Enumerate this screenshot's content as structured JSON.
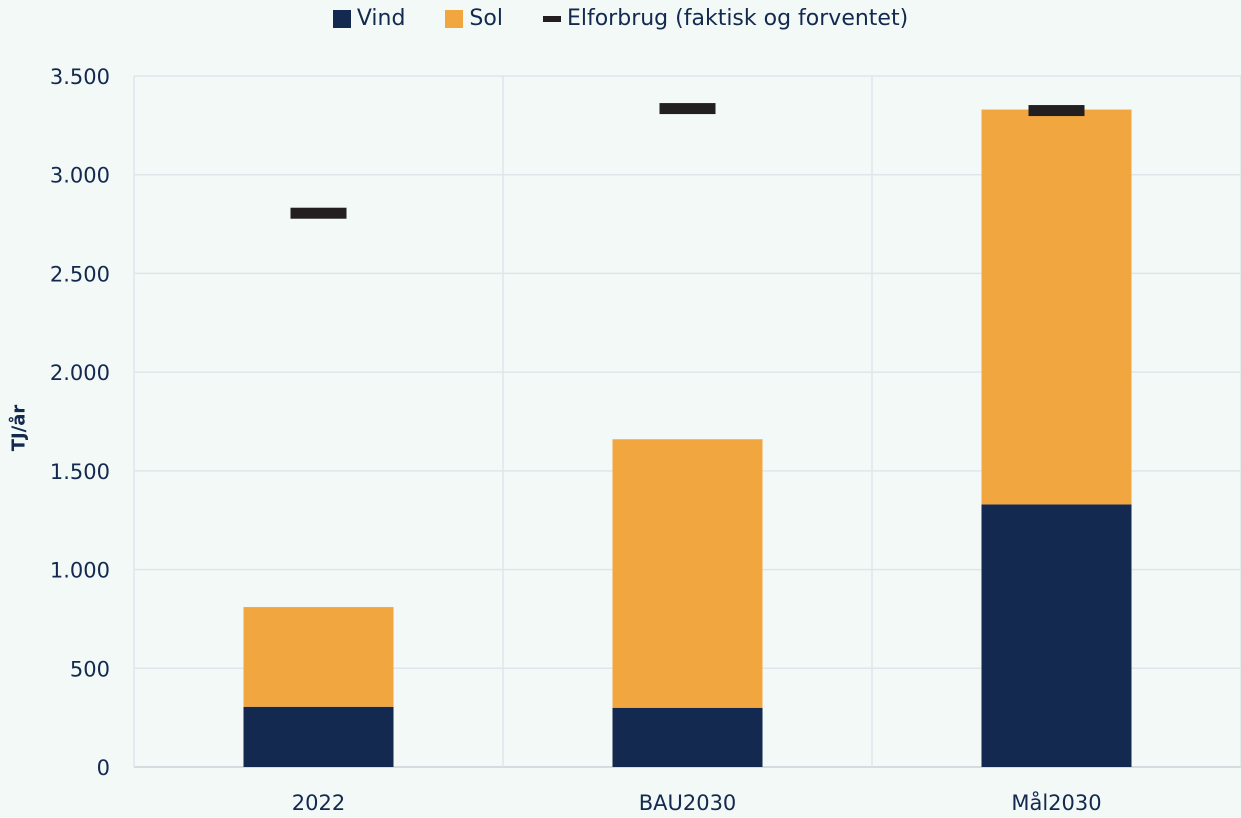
{
  "chart_data": {
    "type": "bar",
    "stacked": true,
    "categories": [
      "2022",
      "BAU2030",
      "Mål2030"
    ],
    "series": [
      {
        "name": "Vind",
        "values": [
          305,
          300,
          1330
        ],
        "color": "#13294f"
      },
      {
        "name": "Sol",
        "values": [
          505,
          1360,
          2000
        ],
        "color": "#f2a640"
      }
    ],
    "markers": {
      "name": "Elforbrug (faktisk og forventet)",
      "values": [
        2805,
        3335,
        3325
      ],
      "color": "#231f20"
    },
    "ylabel": "TJ/år",
    "xlabel": "",
    "ylim": [
      0,
      3500
    ],
    "yticks": [
      0,
      500,
      1000,
      1500,
      2000,
      2500,
      3000,
      3500
    ],
    "ytick_labels": [
      "0",
      "500",
      "1.000",
      "1.500",
      "2.000",
      "2.500",
      "3.000",
      "3.500"
    ],
    "grid": true,
    "legend_position": "top-center"
  }
}
